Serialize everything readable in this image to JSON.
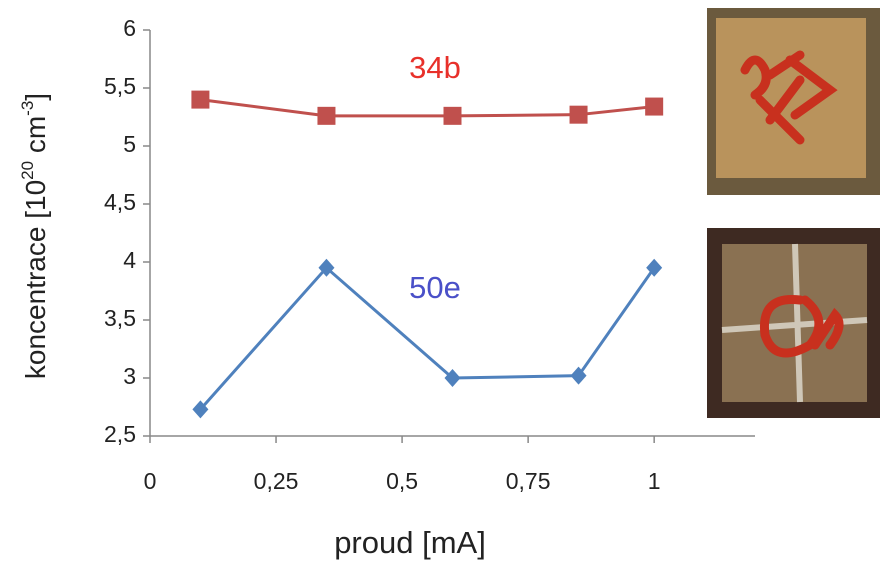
{
  "chart_data": {
    "type": "line",
    "x_label": "proud [mA]",
    "y_label": [
      "koncentrace [10",
      "20",
      " cm",
      "-3",
      "]"
    ],
    "xlim": [
      0,
      1.2
    ],
    "ylim": [
      2.5,
      6
    ],
    "xticks": [
      0,
      {
        "value": 0.25,
        "label": "0,25"
      },
      {
        "value": 0.5,
        "label": "0,5"
      },
      {
        "value": 0.75,
        "label": "0,75"
      },
      1
    ],
    "yticks": [
      {
        "value": 2.5,
        "label": "2,5"
      },
      3,
      {
        "value": 3.5,
        "label": "3,5"
      },
      4,
      {
        "value": 4.5,
        "label": "4,5"
      },
      5,
      {
        "value": 5.5,
        "label": "5,5"
      },
      6
    ],
    "series": [
      {
        "name": "34b",
        "color": "#c0504d",
        "label_color": "#e8302a",
        "marker": "square",
        "x": [
          0.1,
          0.35,
          0.6,
          0.85,
          1
        ],
        "values": [
          5.4,
          5.26,
          5.26,
          5.27,
          5.34
        ]
      },
      {
        "name": "50e",
        "color": "#4f81bd",
        "label_color": "#4a50c8",
        "marker": "diamond",
        "x": [
          0.1,
          0.35,
          0.6,
          0.85,
          1
        ],
        "values": [
          2.73,
          3.95,
          3.0,
          3.02,
          3.95
        ]
      }
    ]
  }
}
